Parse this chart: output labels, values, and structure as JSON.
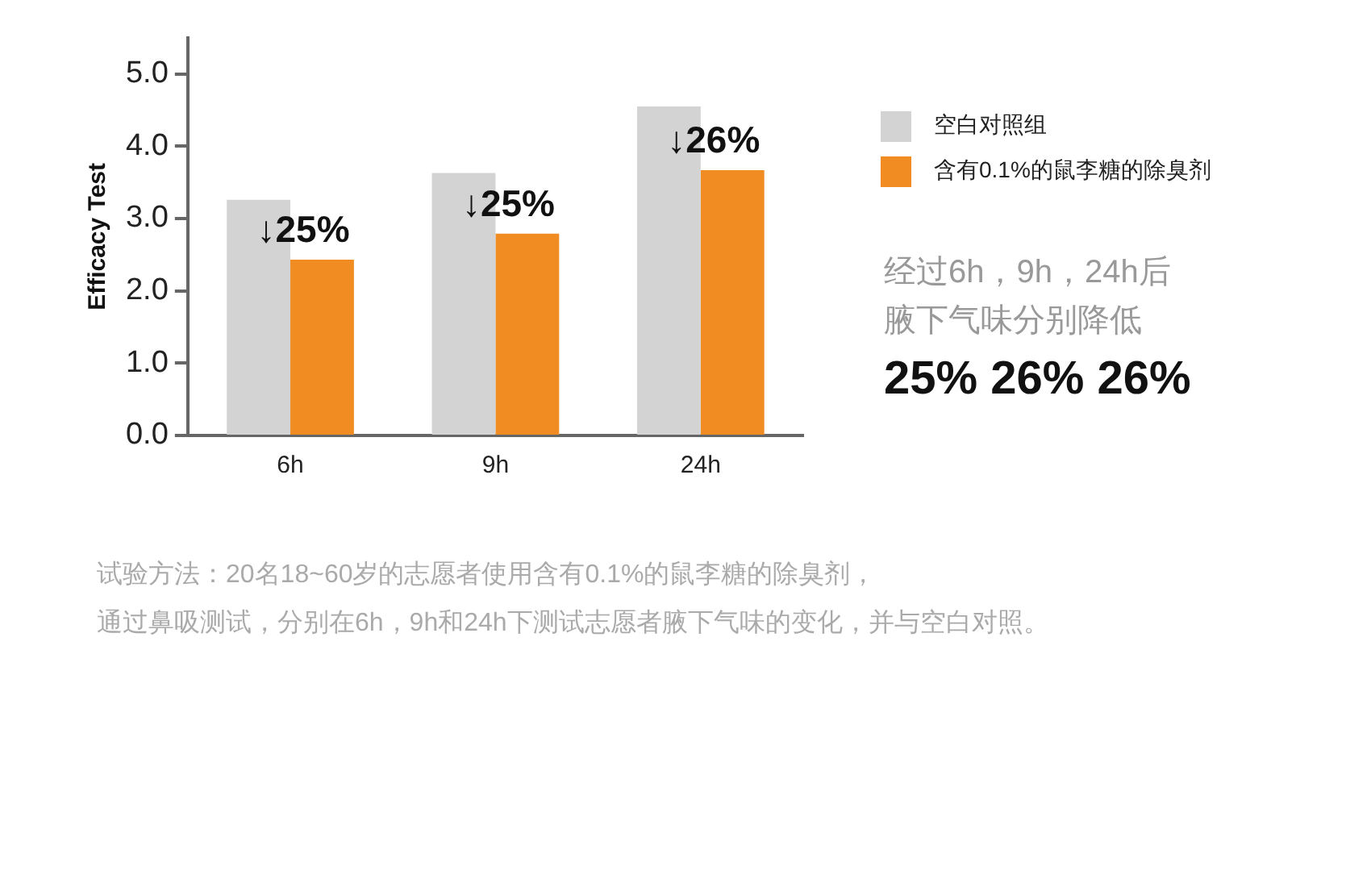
{
  "chart_data": {
    "type": "bar",
    "ylabel": "Efficacy Test",
    "categories": [
      "6h",
      "9h",
      "24h"
    ],
    "series": [
      {
        "name": "空白对照组",
        "color": "#d3d3d3",
        "values": [
          3.26,
          3.63,
          4.55
        ]
      },
      {
        "name": "含有0.1%的鼠李糖的除臭剂",
        "color": "#f08c22",
        "values": [
          2.43,
          2.79,
          3.67
        ]
      }
    ],
    "ylim": [
      0,
      5.5
    ],
    "yticks": [
      {
        "value": 0,
        "label": "0.0"
      },
      {
        "value": 1,
        "label": "1.0"
      },
      {
        "value": 2,
        "label": "2.0"
      },
      {
        "value": 3,
        "label": "3.0"
      },
      {
        "value": 4,
        "label": "4.0"
      },
      {
        "value": 5,
        "label": "5.0"
      }
    ],
    "grid": false,
    "legend": "right",
    "annotations": [
      {
        "text": "↓25%",
        "x": "6h",
        "y": 2.43
      },
      {
        "text": "↓25%",
        "x": "9h",
        "y": 2.79
      },
      {
        "text": "↓26%",
        "x": "24h",
        "y": 3.67
      },
      "经过6h，9h，24h后",
      "腋下气味分别降低",
      "25% 26% 26%",
      "试验方法：20名18~60岁的志愿者使用含有0.1%的鼠李糖的除臭剂，",
      "通过鼻吸测试，分别在6h，9h和24h下测试志愿者腋下气味的变化，并与空白对照。"
    ]
  }
}
